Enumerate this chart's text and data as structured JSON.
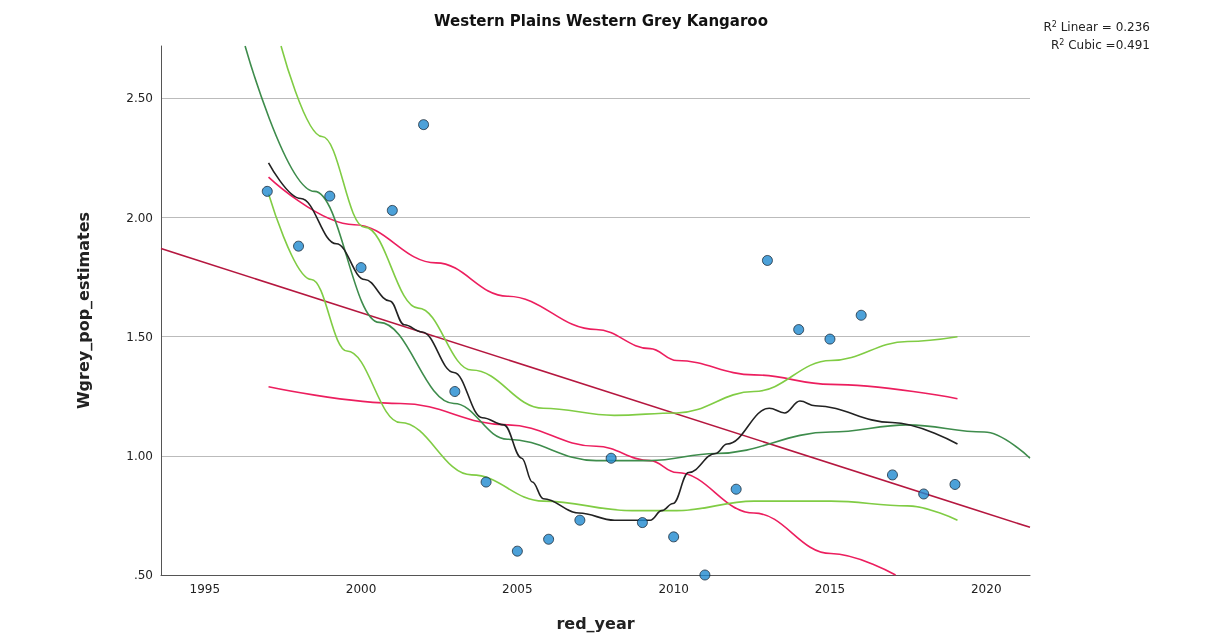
{
  "chart_data": {
    "type": "scatter",
    "title": "Western Plains Western Grey Kangaroo",
    "xlabel": "red_year",
    "ylabel": "Wgrey_pop_estimates",
    "annotations": [
      "R$^{2}$ Linear = 0.236",
      "R$^{2}$ Cubic =0.491"
    ],
    "xlim": [
      1993.6,
      2021.4
    ],
    "xticks": [
      1995,
      2000,
      2005,
      2010,
      2015,
      2020
    ],
    "ylim": [
      0.5,
      2.72
    ],
    "yticks": [
      {
        "value": 0.5,
        "label": ".50"
      },
      {
        "value": 1,
        "label": "1.00"
      },
      {
        "value": 1.5,
        "label": "1.50"
      },
      {
        "value": 2,
        "label": "2.00"
      },
      {
        "value": 2.5,
        "label": "2.50"
      }
    ],
    "grid": "y",
    "marker": "circle",
    "series": [
      {
        "type": "line",
        "marker": "none",
        "color": "#b5173f",
        "x": [
          1993.6,
          2021.4
        ],
        "values": [
          1.87,
          0.7
        ]
      },
      {
        "type": "line",
        "marker": "none",
        "color": "#ec1e5e",
        "x": [
          1997.04,
          1999.78,
          2002.4,
          2004.68,
          2007.52,
          2009.25,
          2010.1,
          2012.57,
          2015.03,
          2019.08
        ],
        "values": [
          2.17,
          1.97,
          1.81,
          1.67,
          1.53,
          1.45,
          1.4,
          1.34,
          1.3,
          1.24
        ]
      },
      {
        "type": "line",
        "marker": "none",
        "color": "#ec1e5e",
        "x": [
          1997.04,
          2001.26,
          2004.68,
          2007.52,
          2009.25,
          2010.1,
          2012.57,
          2015.03,
          2017.1
        ],
        "values": [
          1.29,
          1.22,
          1.13,
          1.04,
          0.98,
          0.93,
          0.76,
          0.59,
          0.5
        ]
      },
      {
        "type": "line",
        "marker": "none",
        "color": "#3e8c4c",
        "x": [
          1996.29,
          1998.51,
          2000.58,
          2002.97,
          2004.68,
          2007.52,
          2009.25,
          2011.34,
          2015.03,
          2017.48,
          2019.94,
          2021.4
        ],
        "values": [
          2.72,
          2.11,
          1.56,
          1.22,
          1.07,
          0.98,
          0.98,
          1.01,
          1.1,
          1.13,
          1.1,
          0.99
        ]
      },
      {
        "type": "line",
        "marker": "none",
        "color": "#80cc44",
        "x": [
          1997.44,
          1998.75,
          2000.11,
          2001.83,
          2003.54,
          2005.83,
          2008.1,
          2010.1,
          2012.57,
          2015.03,
          2017.48,
          2019.08
        ],
        "values": [
          2.72,
          2.34,
          1.96,
          1.62,
          1.36,
          1.2,
          1.17,
          1.18,
          1.27,
          1.4,
          1.48,
          1.5
        ]
      },
      {
        "type": "line",
        "marker": "none",
        "color": "#80cc44",
        "x": [
          1997.04,
          1998.41,
          1999.55,
          2001.26,
          2003.54,
          2005.83,
          2008.67,
          2010.1,
          2012.57,
          2015.03,
          2017.48,
          2019.08
        ],
        "values": [
          2.1,
          1.74,
          1.44,
          1.14,
          0.92,
          0.81,
          0.77,
          0.77,
          0.81,
          0.81,
          0.79,
          0.73
        ]
      },
      {
        "type": "line",
        "marker": "none",
        "color": "#222222",
        "x": [
          1997.04,
          1998.07,
          1999.21,
          2000.12,
          2000.92,
          2001.38,
          2001.95,
          2002.97,
          2003.88,
          2004.57,
          2005.14,
          2005.48,
          2005.83,
          2006.97,
          2008.11,
          2009.25,
          2009.62,
          2009.98,
          2010.48,
          2011.34,
          2011.71,
          2013.06,
          2013.55,
          2014.04,
          2014.53,
          2016.99,
          2019.08
        ],
        "values": [
          2.23,
          2.08,
          1.89,
          1.74,
          1.65,
          1.55,
          1.52,
          1.35,
          1.16,
          1.13,
          0.99,
          0.89,
          0.82,
          0.76,
          0.73,
          0.73,
          0.77,
          0.8,
          0.93,
          1.01,
          1.05,
          1.2,
          1.18,
          1.23,
          1.21,
          1.14,
          1.05
        ]
      },
      {
        "color": "#1f8ad0",
        "x": [
          1997,
          1998,
          1999,
          2000,
          2001,
          2002,
          2003,
          2004,
          2005,
          2006,
          2007,
          2008,
          2009,
          2010,
          2011,
          2012,
          2013,
          2014,
          2015,
          2016,
          2017,
          2018,
          2019
        ],
        "values": [
          2.11,
          1.88,
          2.09,
          1.79,
          2.03,
          2.39,
          1.27,
          0.89,
          0.6,
          0.65,
          0.73,
          0.99,
          0.72,
          0.66,
          0.5,
          0.86,
          1.82,
          1.53,
          1.49,
          1.59,
          0.92,
          0.84,
          0.88
        ]
      }
    ]
  }
}
